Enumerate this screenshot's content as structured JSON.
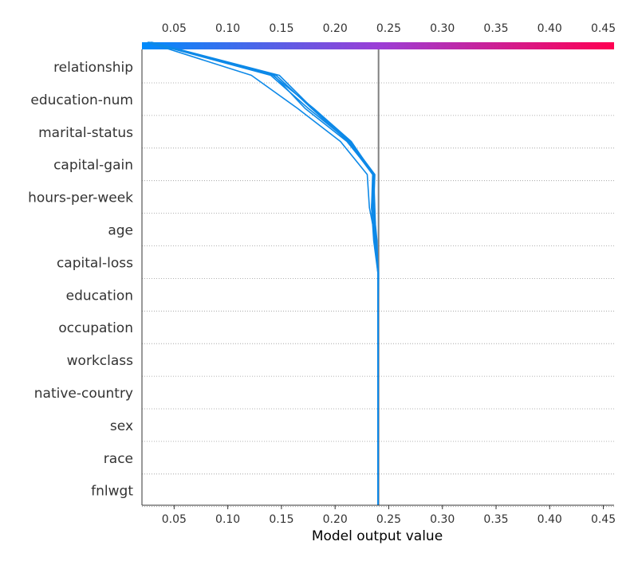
{
  "chart_data": {
    "type": "line",
    "subtype": "shap-decision-plot",
    "title": "",
    "xlabel": "Model output value",
    "ylabel": "",
    "xlim": [
      0.02,
      0.46
    ],
    "x_ticks": [
      0.05,
      0.1,
      0.15,
      0.2,
      0.25,
      0.3,
      0.35,
      0.4,
      0.45
    ],
    "x_tick_labels": [
      "0.05",
      "0.10",
      "0.15",
      "0.20",
      "0.25",
      "0.30",
      "0.35",
      "0.40",
      "0.45"
    ],
    "grid": true,
    "expected_value": 0.2405,
    "colormap": [
      "#008bfb",
      "#9b3ed6",
      "#ff0052"
    ],
    "line_color": "#0d89e8",
    "base_line_color": "#808080",
    "features": [
      "relationship",
      "education-num",
      "marital-status",
      "capital-gain",
      "hours-per-week",
      "age",
      "capital-loss",
      "education",
      "occupation",
      "workclass",
      "native-country",
      "sex",
      "race",
      "fnlwgt"
    ],
    "series": [
      {
        "values": [
          0.24,
          0.24,
          0.24,
          0.24,
          0.24,
          0.24,
          0.24,
          0.2405,
          0.238,
          0.232,
          0.23,
          0.205,
          0.165,
          0.122,
          0.025
        ]
      },
      {
        "values": [
          0.24,
          0.24,
          0.24,
          0.24,
          0.24,
          0.24,
          0.24,
          0.24,
          0.237,
          0.234,
          0.236,
          0.213,
          0.175,
          0.14,
          0.026
        ]
      },
      {
        "values": [
          0.24,
          0.24,
          0.24,
          0.24,
          0.24,
          0.24,
          0.24,
          0.24,
          0.238,
          0.235,
          0.236,
          0.215,
          0.18,
          0.142,
          0.027
        ]
      },
      {
        "values": [
          0.24,
          0.24,
          0.24,
          0.24,
          0.24,
          0.24,
          0.24,
          0.24,
          0.236,
          0.234,
          0.235,
          0.212,
          0.178,
          0.145,
          0.028
        ]
      },
      {
        "values": [
          0.24,
          0.24,
          0.24,
          0.24,
          0.24,
          0.24,
          0.24,
          0.24,
          0.239,
          0.236,
          0.237,
          0.214,
          0.179,
          0.148,
          0.029
        ]
      },
      {
        "values": [
          0.24,
          0.24,
          0.24,
          0.24,
          0.24,
          0.24,
          0.24,
          0.24,
          0.238,
          0.237,
          0.236,
          0.211,
          0.172,
          0.143,
          0.026
        ]
      }
    ]
  }
}
